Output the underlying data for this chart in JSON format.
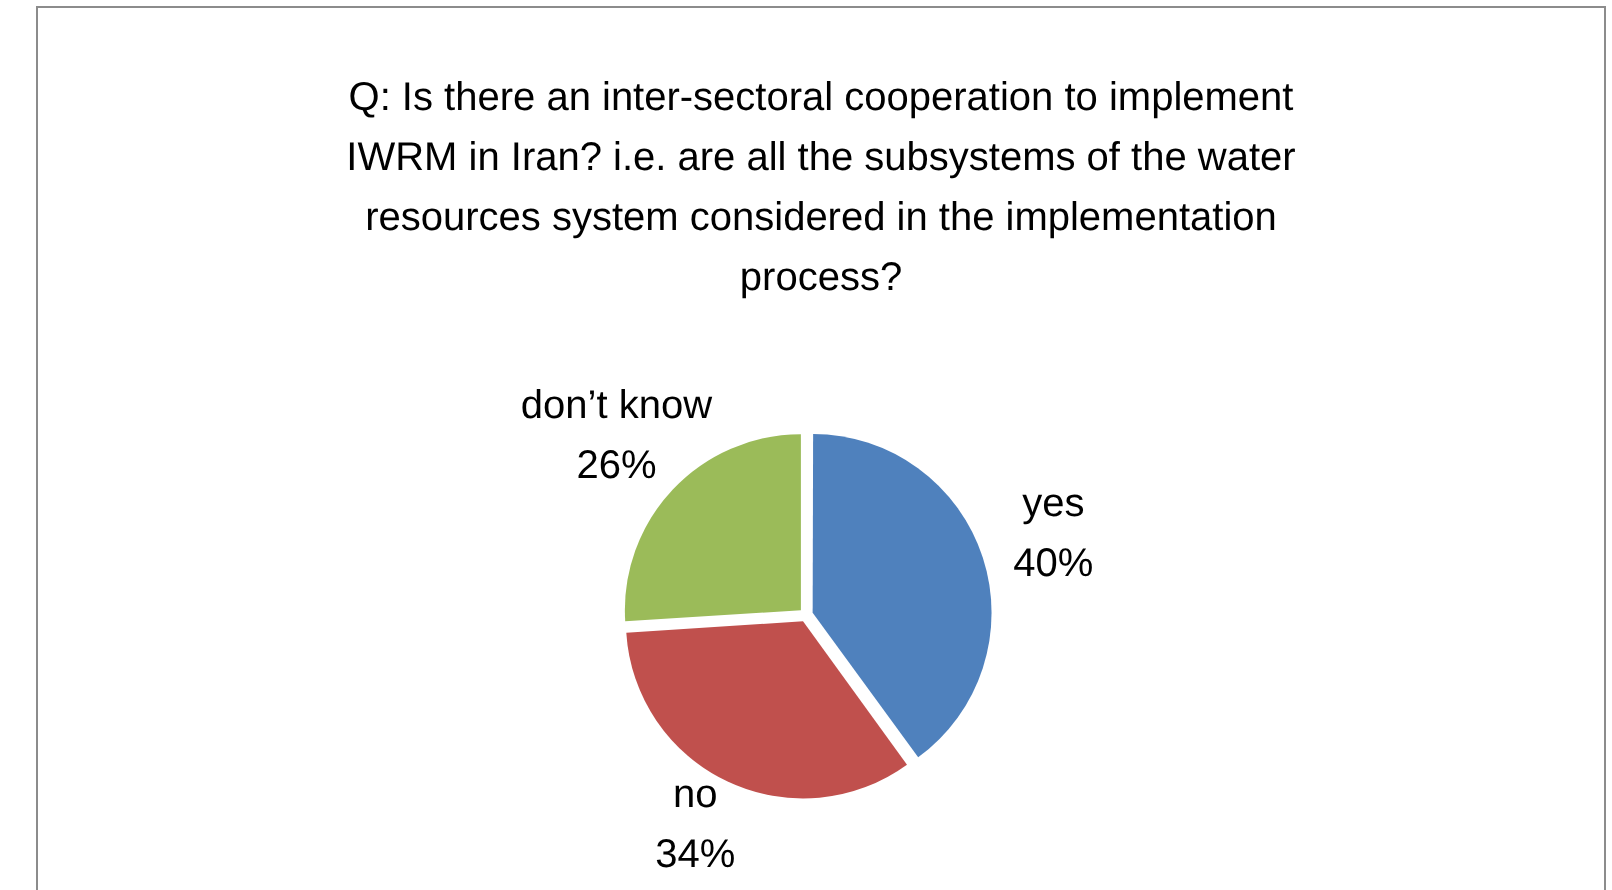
{
  "chart_data": {
    "type": "pie",
    "title": "Q: Is there an inter-sectoral cooperation to implement IWRM in Iran? i.e. are all the subsystems of the water resources system considered in the implementation process?",
    "categories": [
      "yes",
      "no",
      "don’t know"
    ],
    "values": [
      40,
      34,
      26
    ],
    "colors": [
      "#4f81bd",
      "#c0504d",
      "#9bbb59"
    ],
    "value_labels": [
      "40%",
      "34%",
      "26%"
    ],
    "legend": false
  }
}
